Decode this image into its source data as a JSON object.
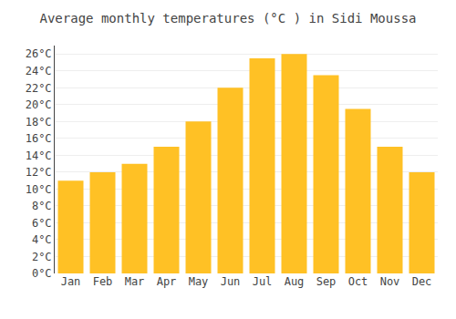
{
  "chart_data": {
    "type": "bar",
    "title": "Average monthly temperatures (°C ) in Sidi Moussa",
    "categories": [
      "Jan",
      "Feb",
      "Mar",
      "Apr",
      "May",
      "Jun",
      "Jul",
      "Aug",
      "Sep",
      "Oct",
      "Nov",
      "Dec"
    ],
    "values": [
      11,
      12,
      13,
      15,
      18,
      22,
      25.5,
      26,
      23.5,
      19.5,
      15,
      12
    ],
    "color": "#FFC125",
    "ylim": [
      0,
      27
    ],
    "yticks": [
      {
        "value": 0,
        "label": "0°C"
      },
      {
        "value": 2,
        "label": "2°C"
      },
      {
        "value": 4,
        "label": "4°C"
      },
      {
        "value": 6,
        "label": "6°C"
      },
      {
        "value": 8,
        "label": "8°C"
      },
      {
        "value": 10,
        "label": "10°C"
      },
      {
        "value": 12,
        "label": "12°C"
      },
      {
        "value": 14,
        "label": "14°C"
      },
      {
        "value": 16,
        "label": "16°C"
      },
      {
        "value": 18,
        "label": "18°C"
      },
      {
        "value": 20,
        "label": "20°C"
      },
      {
        "value": 22,
        "label": "22°C"
      },
      {
        "value": 24,
        "label": "24°C"
      },
      {
        "value": 26,
        "label": "26°C"
      }
    ],
    "grid": true
  }
}
